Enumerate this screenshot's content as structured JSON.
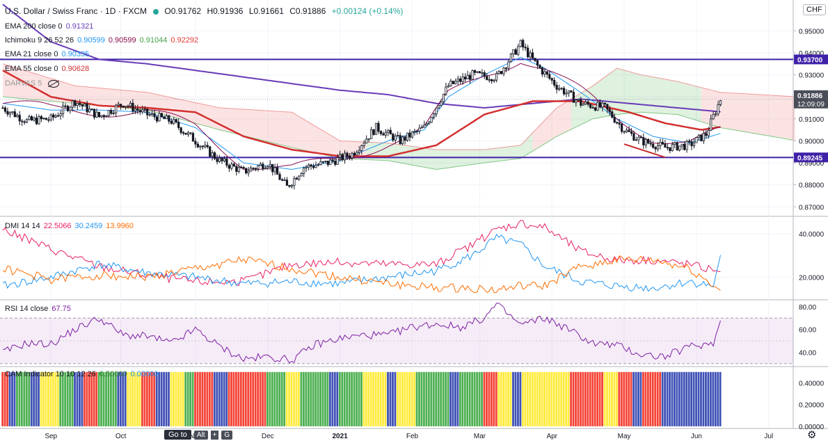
{
  "header": {
    "symbol_title": "U.S. Dollar / Swiss Franc · 1D · FXCM",
    "ohlc": {
      "open": "O0.91762",
      "high": "H0.91936",
      "low": "L0.91661",
      "close": "C0.91886",
      "change": "+0.00124 (+0.14%)"
    },
    "currency_badge": "CHF"
  },
  "indicators": {
    "ema200": {
      "label": "EMA 200 close 0",
      "value": "0.91321",
      "color": "#673ab7"
    },
    "ichimoku": {
      "label": "Ichimoku 9 26 52 26",
      "v1": "0.90599",
      "v2": "0.90599",
      "v3": "0.91044",
      "v4": "0.92292"
    },
    "ema21": {
      "label": "EMA 21 close 0",
      "value": "0.90335",
      "color": "#2196f3"
    },
    "ema55": {
      "label": "EMA 55 close 0",
      "value": "0.90628",
      "color": "#d32f2f"
    },
    "darvas": {
      "label": "DARVAS 5"
    },
    "dmi": {
      "label": "DMI 14 14",
      "v1": "22.5066",
      "v2": "30.2459",
      "v3": "13.9960"
    },
    "rsi": {
      "label": "RSI 14 close",
      "value": "67.75"
    },
    "cam": {
      "label": "CAM Indicator 10 10 12 26",
      "v1": "0.50000",
      "v2": "0.00000"
    }
  },
  "price_labels": {
    "resistance": "0.93700",
    "support": "0.89245",
    "last_price": "0.91886",
    "countdown": "12:09:09"
  },
  "bottom_bar": {
    "goto_label": "Go to",
    "key_alt": "Alt",
    "key_plus": "+",
    "key_g": "G"
  },
  "chart_data": [
    {
      "type": "candlestick",
      "title": "U.S. Dollar / Swiss Franc · 1D · FXCM",
      "ylim": [
        0.866,
        0.964
      ],
      "y_ticks": [
        "0.95000",
        "0.94000",
        "0.93000",
        "0.92000",
        "0.91000",
        "0.90000",
        "0.89000",
        "0.88000",
        "0.87000"
      ],
      "x_labels": [
        "Sep",
        "Oct",
        "Nov",
        "Dec",
        "2021",
        "Feb",
        "Mar",
        "Apr",
        "May",
        "Jun",
        "Jul"
      ],
      "horizontal_lines": [
        0.937,
        0.89245
      ],
      "close_series_anchors": [
        [
          0,
          0.915
        ],
        [
          10,
          0.909
        ],
        [
          20,
          0.91
        ],
        [
          30,
          0.918
        ],
        [
          40,
          0.911
        ],
        [
          50,
          0.917
        ],
        [
          60,
          0.912
        ],
        [
          70,
          0.909
        ],
        [
          80,
          0.9
        ],
        [
          90,
          0.891
        ],
        [
          100,
          0.886
        ],
        [
          110,
          0.89
        ],
        [
          118,
          0.879
        ],
        [
          125,
          0.888
        ],
        [
          135,
          0.89
        ],
        [
          145,
          0.894
        ],
        [
          155,
          0.906
        ],
        [
          165,
          0.9
        ],
        [
          175,
          0.906
        ],
        [
          185,
          0.925
        ],
        [
          195,
          0.93
        ],
        [
          205,
          0.929
        ],
        [
          215,
          0.944
        ],
        [
          222,
          0.934
        ],
        [
          230,
          0.925
        ],
        [
          240,
          0.917
        ],
        [
          250,
          0.915
        ],
        [
          258,
          0.905
        ],
        [
          265,
          0.9
        ],
        [
          275,
          0.897
        ],
        [
          285,
          0.898
        ],
        [
          292,
          0.903
        ],
        [
          298,
          0.9189
        ]
      ],
      "ema200_anchors": [
        [
          0,
          0.962
        ],
        [
          20,
          0.945
        ],
        [
          40,
          0.937
        ],
        [
          60,
          0.935
        ],
        [
          80,
          0.932
        ],
        [
          100,
          0.929
        ],
        [
          120,
          0.926
        ],
        [
          140,
          0.923
        ],
        [
          160,
          0.921
        ],
        [
          180,
          0.917
        ],
        [
          200,
          0.915
        ],
        [
          220,
          0.917
        ],
        [
          240,
          0.919
        ],
        [
          260,
          0.917
        ],
        [
          280,
          0.915
        ],
        [
          298,
          0.9132
        ]
      ],
      "ema55_anchors": [
        [
          0,
          0.932
        ],
        [
          20,
          0.92
        ],
        [
          40,
          0.916
        ],
        [
          60,
          0.915
        ],
        [
          80,
          0.913
        ],
        [
          100,
          0.902
        ],
        [
          120,
          0.896
        ],
        [
          140,
          0.893
        ],
        [
          160,
          0.893
        ],
        [
          180,
          0.898
        ],
        [
          200,
          0.912
        ],
        [
          220,
          0.918
        ],
        [
          240,
          0.918
        ],
        [
          260,
          0.913
        ],
        [
          275,
          0.908
        ],
        [
          290,
          0.905
        ],
        [
          298,
          0.9063
        ]
      ],
      "ema21_anchors": [
        [
          0,
          0.917
        ],
        [
          20,
          0.914
        ],
        [
          40,
          0.914
        ],
        [
          60,
          0.913
        ],
        [
          80,
          0.906
        ],
        [
          100,
          0.89
        ],
        [
          120,
          0.887
        ],
        [
          140,
          0.891
        ],
        [
          160,
          0.9
        ],
        [
          175,
          0.905
        ],
        [
          185,
          0.92
        ],
        [
          200,
          0.93
        ],
        [
          215,
          0.938
        ],
        [
          225,
          0.933
        ],
        [
          240,
          0.922
        ],
        [
          255,
          0.91
        ],
        [
          270,
          0.902
        ],
        [
          285,
          0.899
        ],
        [
          298,
          0.9034
        ]
      ],
      "cloud_top_anchors": [
        [
          0,
          0.935
        ],
        [
          30,
          0.925
        ],
        [
          60,
          0.922
        ],
        [
          90,
          0.915
        ],
        [
          120,
          0.913
        ],
        [
          140,
          0.9
        ],
        [
          160,
          0.899
        ],
        [
          180,
          0.896
        ],
        [
          200,
          0.896
        ],
        [
          215,
          0.898
        ],
        [
          230,
          0.915
        ],
        [
          245,
          0.925
        ],
        [
          255,
          0.933
        ],
        [
          265,
          0.93
        ],
        [
          280,
          0.927
        ],
        [
          298,
          0.922
        ],
        [
          330,
          0.92
        ]
      ],
      "cloud_bottom_anchors": [
        [
          0,
          0.92
        ],
        [
          30,
          0.917
        ],
        [
          60,
          0.914
        ],
        [
          90,
          0.905
        ],
        [
          120,
          0.897
        ],
        [
          140,
          0.892
        ],
        [
          160,
          0.891
        ],
        [
          180,
          0.887
        ],
        [
          200,
          0.89
        ],
        [
          215,
          0.892
        ],
        [
          230,
          0.902
        ],
        [
          245,
          0.91
        ],
        [
          255,
          0.912
        ],
        [
          265,
          0.913
        ],
        [
          280,
          0.912
        ],
        [
          298,
          0.906
        ],
        [
          330,
          0.9
        ]
      ]
    },
    {
      "type": "line",
      "title": "DMI 14 14",
      "ylim": [
        10,
        48
      ],
      "y_ticks": [
        "40.0000",
        "20.0000"
      ],
      "series": [
        {
          "name": "",
          "color": "#e91e63",
          "anchors": [
            [
              0,
              42
            ],
            [
              20,
              33
            ],
            [
              40,
              25
            ],
            [
              60,
              21
            ],
            [
              80,
              18
            ],
            [
              100,
              18
            ],
            [
              120,
              26
            ],
            [
              140,
              27
            ],
            [
              160,
              26
            ],
            [
              180,
              26
            ],
            [
              195,
              35
            ],
            [
              205,
              42
            ],
            [
              215,
              45
            ],
            [
              225,
              43
            ],
            [
              240,
              32
            ],
            [
              255,
              28
            ],
            [
              270,
              28
            ],
            [
              285,
              26
            ],
            [
              298,
              22.51
            ]
          ]
        },
        {
          "name": "",
          "color": "#2196f3",
          "anchors": [
            [
              0,
              16
            ],
            [
              20,
              20
            ],
            [
              40,
              26
            ],
            [
              60,
              22
            ],
            [
              80,
              20
            ],
            [
              100,
              17
            ],
            [
              120,
              18
            ],
            [
              140,
              17
            ],
            [
              160,
              20
            ],
            [
              180,
              23
            ],
            [
              195,
              30
            ],
            [
              205,
              38
            ],
            [
              215,
              35
            ],
            [
              225,
              25
            ],
            [
              240,
              18
            ],
            [
              255,
              16
            ],
            [
              270,
              15
            ],
            [
              285,
              18
            ],
            [
              295,
              16
            ],
            [
              298,
              30.25
            ]
          ]
        },
        {
          "name": "",
          "color": "#ff6d00",
          "anchors": [
            [
              0,
              24
            ],
            [
              20,
              19
            ],
            [
              40,
              21
            ],
            [
              60,
              20
            ],
            [
              80,
              24
            ],
            [
              100,
              28
            ],
            [
              120,
              24
            ],
            [
              140,
              20
            ],
            [
              160,
              17
            ],
            [
              180,
              15
            ],
            [
              195,
              15
            ],
            [
              205,
              14
            ],
            [
              215,
              16
            ],
            [
              225,
              16
            ],
            [
              240,
              25
            ],
            [
              255,
              28
            ],
            [
              270,
              28
            ],
            [
              285,
              24
            ],
            [
              298,
              14.0
            ]
          ]
        }
      ]
    },
    {
      "type": "line",
      "title": "RSI 14 close",
      "ylim": [
        28,
        86
      ],
      "y_ticks": [
        "80.00",
        "60.00",
        "40.00"
      ],
      "band": [
        30,
        70
      ],
      "series": [
        {
          "name": "",
          "color": "#7b1fa2",
          "anchors": [
            [
              0,
              40
            ],
            [
              10,
              48
            ],
            [
              20,
              47
            ],
            [
              30,
              60
            ],
            [
              40,
              70
            ],
            [
              50,
              55
            ],
            [
              60,
              54
            ],
            [
              70,
              48
            ],
            [
              80,
              60
            ],
            [
              90,
              45
            ],
            [
              100,
              34
            ],
            [
              110,
              36
            ],
            [
              120,
              33
            ],
            [
              130,
              47
            ],
            [
              140,
              52
            ],
            [
              150,
              55
            ],
            [
              160,
              55
            ],
            [
              170,
              62
            ],
            [
              180,
              65
            ],
            [
              190,
              62
            ],
            [
              200,
              70
            ],
            [
              205,
              82
            ],
            [
              215,
              64
            ],
            [
              225,
              70
            ],
            [
              235,
              60
            ],
            [
              245,
              48
            ],
            [
              255,
              46
            ],
            [
              265,
              38
            ],
            [
              275,
              36
            ],
            [
              285,
              45
            ],
            [
              295,
              48
            ],
            [
              298,
              67.75
            ]
          ]
        }
      ]
    },
    {
      "type": "bar",
      "title": "CAM Indicator 10 10 12 26",
      "ylim": [
        -0.02,
        0.55
      ],
      "y_ticks": [
        "0.40000",
        "0.20000",
        "0.00000"
      ],
      "value": 0.5,
      "color_runs": [
        [
          "#f44336",
          0,
          3
        ],
        [
          "#3f51b5",
          3,
          6
        ],
        [
          "#4caf50",
          6,
          12
        ],
        [
          "#3f51b5",
          12,
          16
        ],
        [
          "#ffeb3b",
          16,
          24
        ],
        [
          "#4caf50",
          24,
          30
        ],
        [
          "#3f51b5",
          30,
          34
        ],
        [
          "#f44336",
          34,
          40
        ],
        [
          "#4caf50",
          40,
          48
        ],
        [
          "#3f51b5",
          48,
          52
        ],
        [
          "#ffeb3b",
          52,
          58
        ],
        [
          "#f44336",
          58,
          64
        ],
        [
          "#3f51b5",
          64,
          70
        ],
        [
          "#ffeb3b",
          70,
          76
        ],
        [
          "#4caf50",
          76,
          80
        ],
        [
          "#f44336",
          80,
          88
        ],
        [
          "#3f51b5",
          88,
          94
        ],
        [
          "#f44336",
          94,
          110
        ],
        [
          "#4caf50",
          110,
          118
        ],
        [
          "#ffeb3b",
          118,
          124
        ],
        [
          "#4caf50",
          124,
          136
        ],
        [
          "#3f51b5",
          136,
          140
        ],
        [
          "#4caf50",
          140,
          150
        ],
        [
          "#ffeb3b",
          150,
          160
        ],
        [
          "#3f51b5",
          160,
          164
        ],
        [
          "#ffeb3b",
          164,
          172
        ],
        [
          "#4caf50",
          172,
          186
        ],
        [
          "#3f51b5",
          186,
          190
        ],
        [
          "#4caf50",
          190,
          200
        ],
        [
          "#f44336",
          200,
          206
        ],
        [
          "#ffeb3b",
          206,
          212
        ],
        [
          "#3f51b5",
          212,
          216
        ],
        [
          "#ffeb3b",
          216,
          236
        ],
        [
          "#f44336",
          236,
          250
        ],
        [
          "#ffeb3b",
          250,
          256
        ],
        [
          "#f44336",
          256,
          262
        ],
        [
          "#3f51b5",
          262,
          266
        ],
        [
          "#f44336",
          266,
          274
        ],
        [
          "#3f51b5",
          274,
          299
        ]
      ]
    }
  ]
}
